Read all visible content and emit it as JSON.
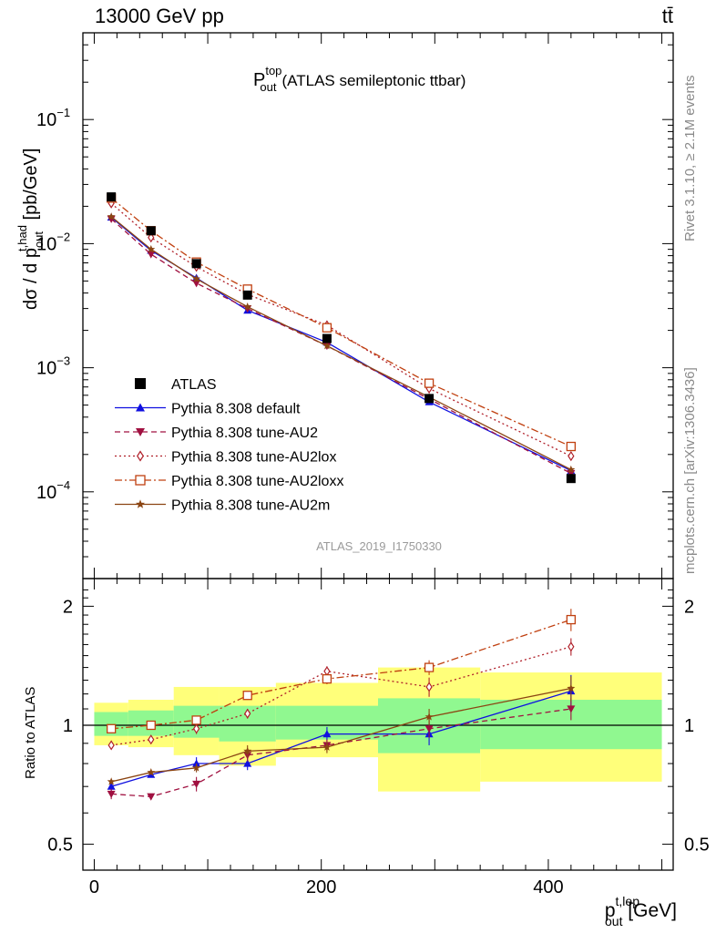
{
  "header": {
    "left_label": "13000 GeV pp",
    "right_label": "tt̄",
    "watermark": "ATLAS_2019_I1750330",
    "side_rivet": "Rivet 3.1.10, ≥ 2.1M events",
    "side_mcplots": "mcplots.cern.ch [arXiv:1306.3436]"
  },
  "chart_data": [
    {
      "type": "line",
      "title": "(ATLAS semileptonic ttbar)",
      "title_main": "P",
      "title_sup": "top",
      "title_sub": "out",
      "ylabel": "dσ / d p",
      "ylabel_sub": "out",
      "ylabel_sup": "t,had",
      "ylabel_unit": " [pb/GeV]",
      "y_scale": "log",
      "ylim": [
        2e-05,
        0.5
      ],
      "xlim": [
        -10,
        510
      ],
      "y_ticks": [
        {
          "v": 0.1,
          "base": "10",
          "exp": "−1"
        },
        {
          "v": 0.01,
          "base": "10",
          "exp": "−2"
        },
        {
          "v": 0.001,
          "base": "10",
          "exp": "−3"
        },
        {
          "v": 0.0001,
          "base": "10",
          "exp": "−4"
        }
      ],
      "legend_position": "bottom-left",
      "x": [
        15,
        50,
        90,
        135,
        205,
        295,
        420
      ],
      "data": {
        "name": "ATLAS",
        "values": [
          0.0238,
          0.0127,
          0.0069,
          0.00385,
          0.00172,
          0.000565,
          0.000128
        ],
        "color": "#000000"
      },
      "series": [
        {
          "name": "Pythia 8.308 default",
          "values": [
            0.0163,
            0.0088,
            0.0053,
            0.0029,
            0.0016,
            0.00053,
            0.000148
          ],
          "color": "#1010e0",
          "marker": "triangle-up",
          "dash": "solid"
        },
        {
          "name": "Pythia 8.308 tune-AU2",
          "values": [
            0.0158,
            0.0082,
            0.0048,
            0.003,
            0.0015,
            0.00056,
            0.000141
          ],
          "color": "#a01040",
          "marker": "triangle-down",
          "dash": "dashed"
        },
        {
          "name": "Pythia 8.308 tune-AU2lox",
          "values": [
            0.0211,
            0.0112,
            0.0065,
            0.0039,
            0.0022,
            0.00068,
            0.000194
          ],
          "color": "#b0202a",
          "marker": "diamond-open",
          "dash": "dotted"
        },
        {
          "name": "Pythia 8.308 tune-AU2loxx",
          "values": [
            0.0233,
            0.0127,
            0.0071,
            0.0043,
            0.0021,
            0.00075,
            0.000232
          ],
          "color": "#c04010",
          "marker": "square-open",
          "dash": "dashdot"
        },
        {
          "name": "Pythia 8.308 tune-AU2m",
          "values": [
            0.0165,
            0.009,
            0.0052,
            0.0031,
            0.0015,
            0.00058,
            0.000151
          ],
          "color": "#8b4513",
          "marker": "star",
          "dash": "solid"
        }
      ]
    },
    {
      "type": "line",
      "ylabel": "Ratio to ATLAS",
      "xlabel": "p",
      "xlabel_sub": "out",
      "xlabel_sup": "t,lep",
      "xlabel_unit": " [GeV]",
      "y_scale": "log",
      "ylim": [
        0.43,
        2.35
      ],
      "xlim": [
        -10,
        510
      ],
      "y_ticks": [
        {
          "v": 2,
          "label": "2"
        },
        {
          "v": 1,
          "label": "1"
        },
        {
          "v": 0.5,
          "label": "0.5"
        }
      ],
      "x_ticks": [
        {
          "v": 0,
          "label": "0"
        },
        {
          "v": 200,
          "label": "200"
        },
        {
          "v": 400,
          "label": "400"
        }
      ],
      "x": [
        15,
        50,
        90,
        135,
        205,
        295,
        420
      ],
      "bands": [
        {
          "x0": 0,
          "x1": 30,
          "yellow": [
            0.89,
            1.14
          ],
          "green": [
            0.94,
            1.08
          ]
        },
        {
          "x0": 30,
          "x1": 70,
          "yellow": [
            0.88,
            1.16
          ],
          "green": [
            0.94,
            1.09
          ]
        },
        {
          "x0": 70,
          "x1": 110,
          "yellow": [
            0.84,
            1.25
          ],
          "green": [
            0.93,
            1.12
          ]
        },
        {
          "x0": 110,
          "x1": 160,
          "yellow": [
            0.79,
            1.25
          ],
          "green": [
            0.91,
            1.12
          ]
        },
        {
          "x0": 160,
          "x1": 250,
          "yellow": [
            0.83,
            1.28
          ],
          "green": [
            0.92,
            1.12
          ]
        },
        {
          "x0": 250,
          "x1": 340,
          "yellow": [
            0.68,
            1.4
          ],
          "green": [
            0.85,
            1.17
          ]
        },
        {
          "x0": 340,
          "x1": 500,
          "yellow": [
            0.72,
            1.36
          ],
          "green": [
            0.87,
            1.16
          ]
        }
      ],
      "series": [
        {
          "name": "Pythia 8.308 default",
          "values": [
            0.7,
            0.75,
            0.8,
            0.8,
            0.95,
            0.95,
            1.22
          ],
          "err": [
            0.02,
            0.01,
            0.03,
            0.03,
            0.04,
            0.06,
            0.12
          ]
        },
        {
          "name": "Pythia 8.308 tune-AU2",
          "values": [
            0.67,
            0.66,
            0.71,
            0.84,
            0.89,
            0.98,
            1.1
          ],
          "err": [
            0.02,
            0.01,
            0.03,
            0.03,
            0.03,
            0.05,
            0.07
          ]
        },
        {
          "name": "Pythia 8.308 tune-AU2lox",
          "values": [
            0.89,
            0.92,
            0.98,
            1.07,
            1.37,
            1.25,
            1.58
          ],
          "err": [
            0.01,
            0.01,
            0.03,
            0.03,
            0.04,
            0.07,
            0.08
          ]
        },
        {
          "name": "Pythia 8.308 tune-AU2loxx",
          "values": [
            0.98,
            1.0,
            1.03,
            1.19,
            1.31,
            1.4,
            1.85
          ],
          "err": [
            0.01,
            0.01,
            0.02,
            0.03,
            0.04,
            0.06,
            0.12
          ]
        },
        {
          "name": "Pythia 8.308 tune-AU2m",
          "values": [
            0.72,
            0.76,
            0.78,
            0.86,
            0.88,
            1.05,
            1.24
          ],
          "err": [
            0.01,
            0.01,
            0.02,
            0.03,
            0.03,
            0.05,
            0.09
          ]
        }
      ]
    }
  ]
}
